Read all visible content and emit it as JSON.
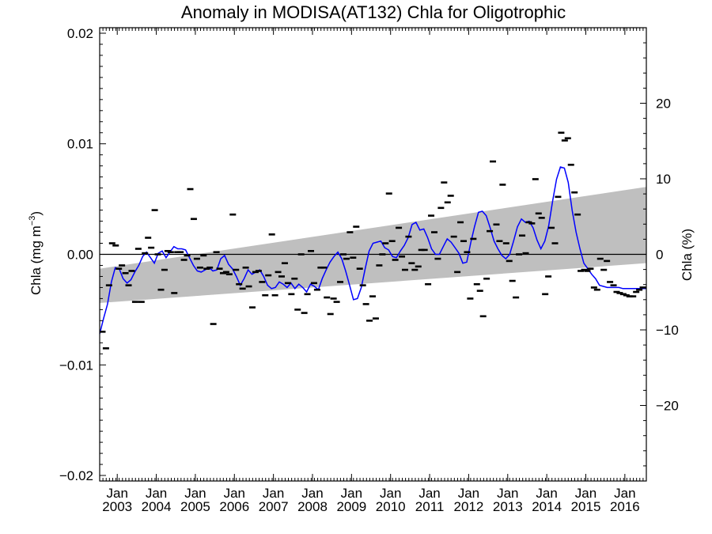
{
  "chart_data": {
    "type": "line",
    "title": "Anomaly in MODISA(AT132) Chla for Oligotrophic",
    "ylabel": "Chla (mg m",
    "ylabel_sup": "−3",
    "ylabel_close": ")",
    "y2label": "Chla (%)",
    "xlim": [
      2002.55,
      2016.55
    ],
    "ylim": [
      -0.0205,
      0.0205
    ],
    "y2lim": [
      -30,
      30
    ],
    "y_ticks": [
      {
        "value": -0.02,
        "label": "−0.02"
      },
      {
        "value": -0.01,
        "label": "−0.01"
      },
      {
        "value": 0.0,
        "label": "0.00"
      },
      {
        "value": 0.01,
        "label": "0.01"
      },
      {
        "value": 0.02,
        "label": "0.02"
      }
    ],
    "y2_ticks": [
      {
        "value": -20,
        "label": "−20"
      },
      {
        "value": -10,
        "label": "−10"
      },
      {
        "value": 0,
        "label": "0"
      },
      {
        "value": 10,
        "label": "10"
      },
      {
        "value": 20,
        "label": "20"
      }
    ],
    "x_ticks": [
      {
        "value": 2003.0,
        "month": "Jan",
        "year": "2003"
      },
      {
        "value": 2004.0,
        "month": "Jan",
        "year": "2004"
      },
      {
        "value": 2005.0,
        "month": "Jan",
        "year": "2005"
      },
      {
        "value": 2006.0,
        "month": "Jan",
        "year": "2006"
      },
      {
        "value": 2007.0,
        "month": "Jan",
        "year": "2007"
      },
      {
        "value": 2008.0,
        "month": "Jan",
        "year": "2008"
      },
      {
        "value": 2009.0,
        "month": "Jan",
        "year": "2009"
      },
      {
        "value": 2010.0,
        "month": "Jan",
        "year": "2010"
      },
      {
        "value": 2011.0,
        "month": "Jan",
        "year": "2011"
      },
      {
        "value": 2012.0,
        "month": "Jan",
        "year": "2012"
      },
      {
        "value": 2013.0,
        "month": "Jan",
        "year": "2013"
      },
      {
        "value": 2014.0,
        "month": "Jan",
        "year": "2014"
      },
      {
        "value": 2015.0,
        "month": "Jan",
        "year": "2015"
      },
      {
        "value": 2016.0,
        "month": "Jan",
        "year": "2016"
      }
    ],
    "trend_band": {
      "x": [
        2002.55,
        2016.55
      ],
      "lower": [
        -0.0044,
        -0.0008
      ],
      "upper": [
        -0.0013,
        0.0061
      ]
    },
    "zero_line": 0.0,
    "series": [
      {
        "style": "line",
        "color": "#0000ff",
        "x": [
          2002.55,
          2002.65,
          2002.75,
          2002.85,
          2002.95,
          2003.05,
          2003.15,
          2003.25,
          2003.35,
          2003.45,
          2003.55,
          2003.65,
          2003.75,
          2003.85,
          2003.95,
          2004.05,
          2004.15,
          2004.25,
          2004.35,
          2004.45,
          2004.55,
          2004.65,
          2004.75,
          2004.85,
          2004.95,
          2005.05,
          2005.15,
          2005.25,
          2005.35,
          2005.45,
          2005.55,
          2005.65,
          2005.75,
          2005.85,
          2005.95,
          2006.05,
          2006.15,
          2006.25,
          2006.35,
          2006.45,
          2006.55,
          2006.65,
          2006.75,
          2006.85,
          2006.95,
          2007.05,
          2007.15,
          2007.25,
          2007.35,
          2007.45,
          2007.55,
          2007.65,
          2007.75,
          2007.85,
          2007.95,
          2008.05,
          2008.15,
          2008.25,
          2008.35,
          2008.45,
          2008.55,
          2008.65,
          2008.75,
          2008.85,
          2008.95,
          2009.05,
          2009.15,
          2009.25,
          2009.35,
          2009.45,
          2009.55,
          2009.65,
          2009.75,
          2009.85,
          2009.95,
          2010.05,
          2010.15,
          2010.25,
          2010.35,
          2010.45,
          2010.55,
          2010.65,
          2010.75,
          2010.85,
          2010.95,
          2011.05,
          2011.15,
          2011.25,
          2011.35,
          2011.45,
          2011.55,
          2011.65,
          2011.75,
          2011.85,
          2011.95,
          2012.05,
          2012.15,
          2012.25,
          2012.35,
          2012.45,
          2012.55,
          2012.65,
          2012.75,
          2012.85,
          2012.95,
          2013.05,
          2013.15,
          2013.25,
          2013.35,
          2013.45,
          2013.55,
          2013.65,
          2013.75,
          2013.85,
          2013.95,
          2014.05,
          2014.15,
          2014.25,
          2014.35,
          2014.45,
          2014.55,
          2014.65,
          2014.75,
          2014.85,
          2014.95,
          2015.05,
          2015.15,
          2015.25,
          2015.35,
          2015.45,
          2015.55,
          2015.65,
          2015.75,
          2015.85,
          2015.95,
          2016.05,
          2016.15,
          2016.25,
          2016.35,
          2016.45,
          2016.55
        ],
        "y": [
          -0.0072,
          -0.0058,
          -0.0045,
          -0.0025,
          -0.0012,
          -0.0013,
          -0.0022,
          -0.0026,
          -0.0023,
          -0.0016,
          -0.001,
          -0.0002,
          0.0002,
          -0.0003,
          -0.0008,
          0.0001,
          0.0003,
          -0.0003,
          0.0002,
          0.0007,
          0.0005,
          0.0005,
          0.0004,
          -0.0003,
          -0.001,
          -0.0015,
          -0.0016,
          -0.0014,
          -0.0012,
          -0.0015,
          -0.0014,
          -0.0004,
          -0.0001,
          -0.0009,
          -0.0013,
          -0.002,
          -0.0028,
          -0.0022,
          -0.0014,
          -0.0018,
          -0.0016,
          -0.0014,
          -0.002,
          -0.0028,
          -0.0031,
          -0.003,
          -0.0025,
          -0.0027,
          -0.003,
          -0.0026,
          -0.0031,
          -0.0027,
          -0.003,
          -0.0034,
          -0.0027,
          -0.0029,
          -0.0032,
          -0.0022,
          -0.0014,
          -0.0007,
          -0.0002,
          0.0002,
          -0.0004,
          -0.0015,
          -0.0028,
          -0.0041,
          -0.004,
          -0.003,
          -0.0013,
          0.0003,
          0.001,
          0.0011,
          0.0012,
          0.0006,
          0.0004,
          -0.0002,
          -0.0003,
          0.0003,
          0.0008,
          0.0015,
          0.0027,
          0.0029,
          0.0022,
          0.0023,
          0.0015,
          0.0005,
          0.0,
          0.0,
          0.0007,
          0.0014,
          0.0011,
          0.0006,
          0.0001,
          -0.0008,
          -0.0007,
          0.001,
          0.0025,
          0.0038,
          0.0039,
          0.0035,
          0.0024,
          0.0012,
          0.0005,
          -0.0001,
          -0.0004,
          0.0,
          0.0012,
          0.0025,
          0.0032,
          0.0029,
          0.003,
          0.0024,
          0.0013,
          0.0005,
          0.0012,
          0.0026,
          0.0048,
          0.0068,
          0.0079,
          0.0078,
          0.0065,
          0.004,
          0.002,
          0.0005,
          -0.0008,
          -0.0013,
          -0.0018,
          -0.0022,
          -0.0028,
          -0.0029,
          -0.003,
          -0.003,
          -0.003,
          -0.003,
          -0.0031,
          -0.0031,
          -0.0031,
          -0.0031,
          -0.0031,
          -0.0031,
          -0.0031
        ]
      },
      {
        "style": "markers",
        "color": "#000000",
        "x": [
          2002.62,
          2002.71,
          2002.79,
          2002.87,
          2002.96,
          2003.04,
          2003.12,
          2003.21,
          2003.29,
          2003.37,
          2003.46,
          2003.54,
          2003.62,
          2003.71,
          2003.79,
          2003.87,
          2003.96,
          2004.04,
          2004.12,
          2004.21,
          2004.29,
          2004.37,
          2004.46,
          2004.54,
          2004.62,
          2004.71,
          2004.79,
          2004.87,
          2004.96,
          2005.04,
          2005.12,
          2005.21,
          2005.29,
          2005.37,
          2005.46,
          2005.54,
          2005.62,
          2005.71,
          2005.79,
          2005.87,
          2005.96,
          2006.04,
          2006.12,
          2006.21,
          2006.29,
          2006.37,
          2006.46,
          2006.54,
          2006.62,
          2006.71,
          2006.79,
          2006.87,
          2006.96,
          2007.04,
          2007.12,
          2007.21,
          2007.29,
          2007.37,
          2007.46,
          2007.54,
          2007.62,
          2007.71,
          2007.79,
          2007.87,
          2007.96,
          2008.04,
          2008.12,
          2008.21,
          2008.29,
          2008.37,
          2008.46,
          2008.54,
          2008.62,
          2008.71,
          2008.79,
          2008.87,
          2008.96,
          2009.04,
          2009.12,
          2009.21,
          2009.29,
          2009.37,
          2009.46,
          2009.54,
          2009.62,
          2009.71,
          2009.79,
          2009.87,
          2009.96,
          2010.04,
          2010.12,
          2010.21,
          2010.29,
          2010.37,
          2010.46,
          2010.54,
          2010.62,
          2010.71,
          2010.79,
          2010.87,
          2010.96,
          2011.04,
          2011.12,
          2011.21,
          2011.29,
          2011.37,
          2011.46,
          2011.54,
          2011.62,
          2011.71,
          2011.79,
          2011.87,
          2011.96,
          2012.04,
          2012.12,
          2012.21,
          2012.29,
          2012.37,
          2012.46,
          2012.54,
          2012.62,
          2012.71,
          2012.79,
          2012.87,
          2012.96,
          2013.04,
          2013.12,
          2013.21,
          2013.29,
          2013.37,
          2013.46,
          2013.54,
          2013.62,
          2013.71,
          2013.79,
          2013.87,
          2013.96,
          2014.04,
          2014.12,
          2014.21,
          2014.29,
          2014.37,
          2014.46,
          2014.54,
          2014.62,
          2014.71,
          2014.79,
          2014.87,
          2014.96,
          2015.04,
          2015.12,
          2015.21,
          2015.29,
          2015.37,
          2015.46,
          2015.54,
          2015.62,
          2015.71,
          2015.79,
          2015.87,
          2015.96,
          2016.04,
          2016.12,
          2016.21,
          2016.29,
          2016.37,
          2016.46
        ],
        "y": [
          -0.007,
          -0.0085,
          -0.0028,
          0.001,
          0.0008,
          -0.0013,
          -0.001,
          -0.0017,
          -0.0028,
          -0.0015,
          -0.0043,
          0.0005,
          -0.0043,
          0.0001,
          0.0015,
          0.0006,
          0.004,
          0.0,
          -0.0032,
          -0.0014,
          0.0003,
          0.0002,
          -0.0035,
          0.0002,
          0.0002,
          -0.0005,
          -0.0001,
          0.0059,
          0.0032,
          -0.0004,
          -0.0012,
          -0.0001,
          -0.0013,
          -0.0012,
          -0.0063,
          0.0002,
          -0.0013,
          -0.0017,
          -0.0016,
          -0.0018,
          0.0036,
          -0.0014,
          -0.0027,
          -0.0031,
          -0.0012,
          -0.0029,
          -0.0048,
          -0.0016,
          -0.0015,
          -0.0025,
          -0.0037,
          -0.0019,
          0.0018,
          -0.0037,
          -0.0016,
          -0.002,
          -0.0008,
          -0.0026,
          -0.0036,
          -0.0022,
          -0.005,
          0.0,
          -0.0053,
          -0.0036,
          0.0003,
          -0.0026,
          -0.0032,
          -0.0012,
          -0.0012,
          -0.0039,
          -0.0054,
          -0.004,
          -0.0043,
          -0.0025,
          0.0,
          -0.0004,
          0.002,
          -0.0003,
          0.0025,
          -0.0013,
          -0.0028,
          -0.0045,
          -0.006,
          -0.0038,
          -0.0058,
          -0.001,
          0.0,
          0.001,
          0.0055,
          0.0012,
          -0.0005,
          0.0024,
          -0.0002,
          -0.0014,
          0.0016,
          -0.0008,
          -0.0014,
          -0.0011,
          0.0004,
          0.0004,
          -0.0027,
          0.0035,
          0.002,
          -0.0004,
          0.0042,
          0.0065,
          0.0047,
          0.0053,
          0.0016,
          -0.0016,
          0.0029,
          0.0012,
          0.0002,
          -0.004,
          0.0014,
          -0.0027,
          -0.0033,
          -0.0056,
          -0.0022,
          0.0021,
          0.0084,
          0.0027,
          0.0012,
          0.0063,
          0.001,
          -0.0006,
          -0.0024,
          -0.0039,
          0.0,
          0.0017,
          0.0001,
          0.0029,
          0.0028,
          0.0068,
          0.0037,
          0.0033,
          -0.0036,
          -0.002,
          0.0024,
          0.001,
          0.0052,
          0.011,
          0.0103,
          0.0105,
          0.0081,
          0.0056,
          0.0036,
          -0.0015,
          -0.0014,
          -0.0015,
          -0.0013,
          -0.003,
          -0.0032,
          -0.0004,
          -0.0014,
          -0.0006,
          -0.0025,
          -0.0028,
          -0.0034,
          -0.0035,
          -0.0036,
          -0.0037,
          -0.0038,
          -0.0038,
          -0.0034,
          -0.0032,
          -0.003
        ]
      }
    ]
  }
}
